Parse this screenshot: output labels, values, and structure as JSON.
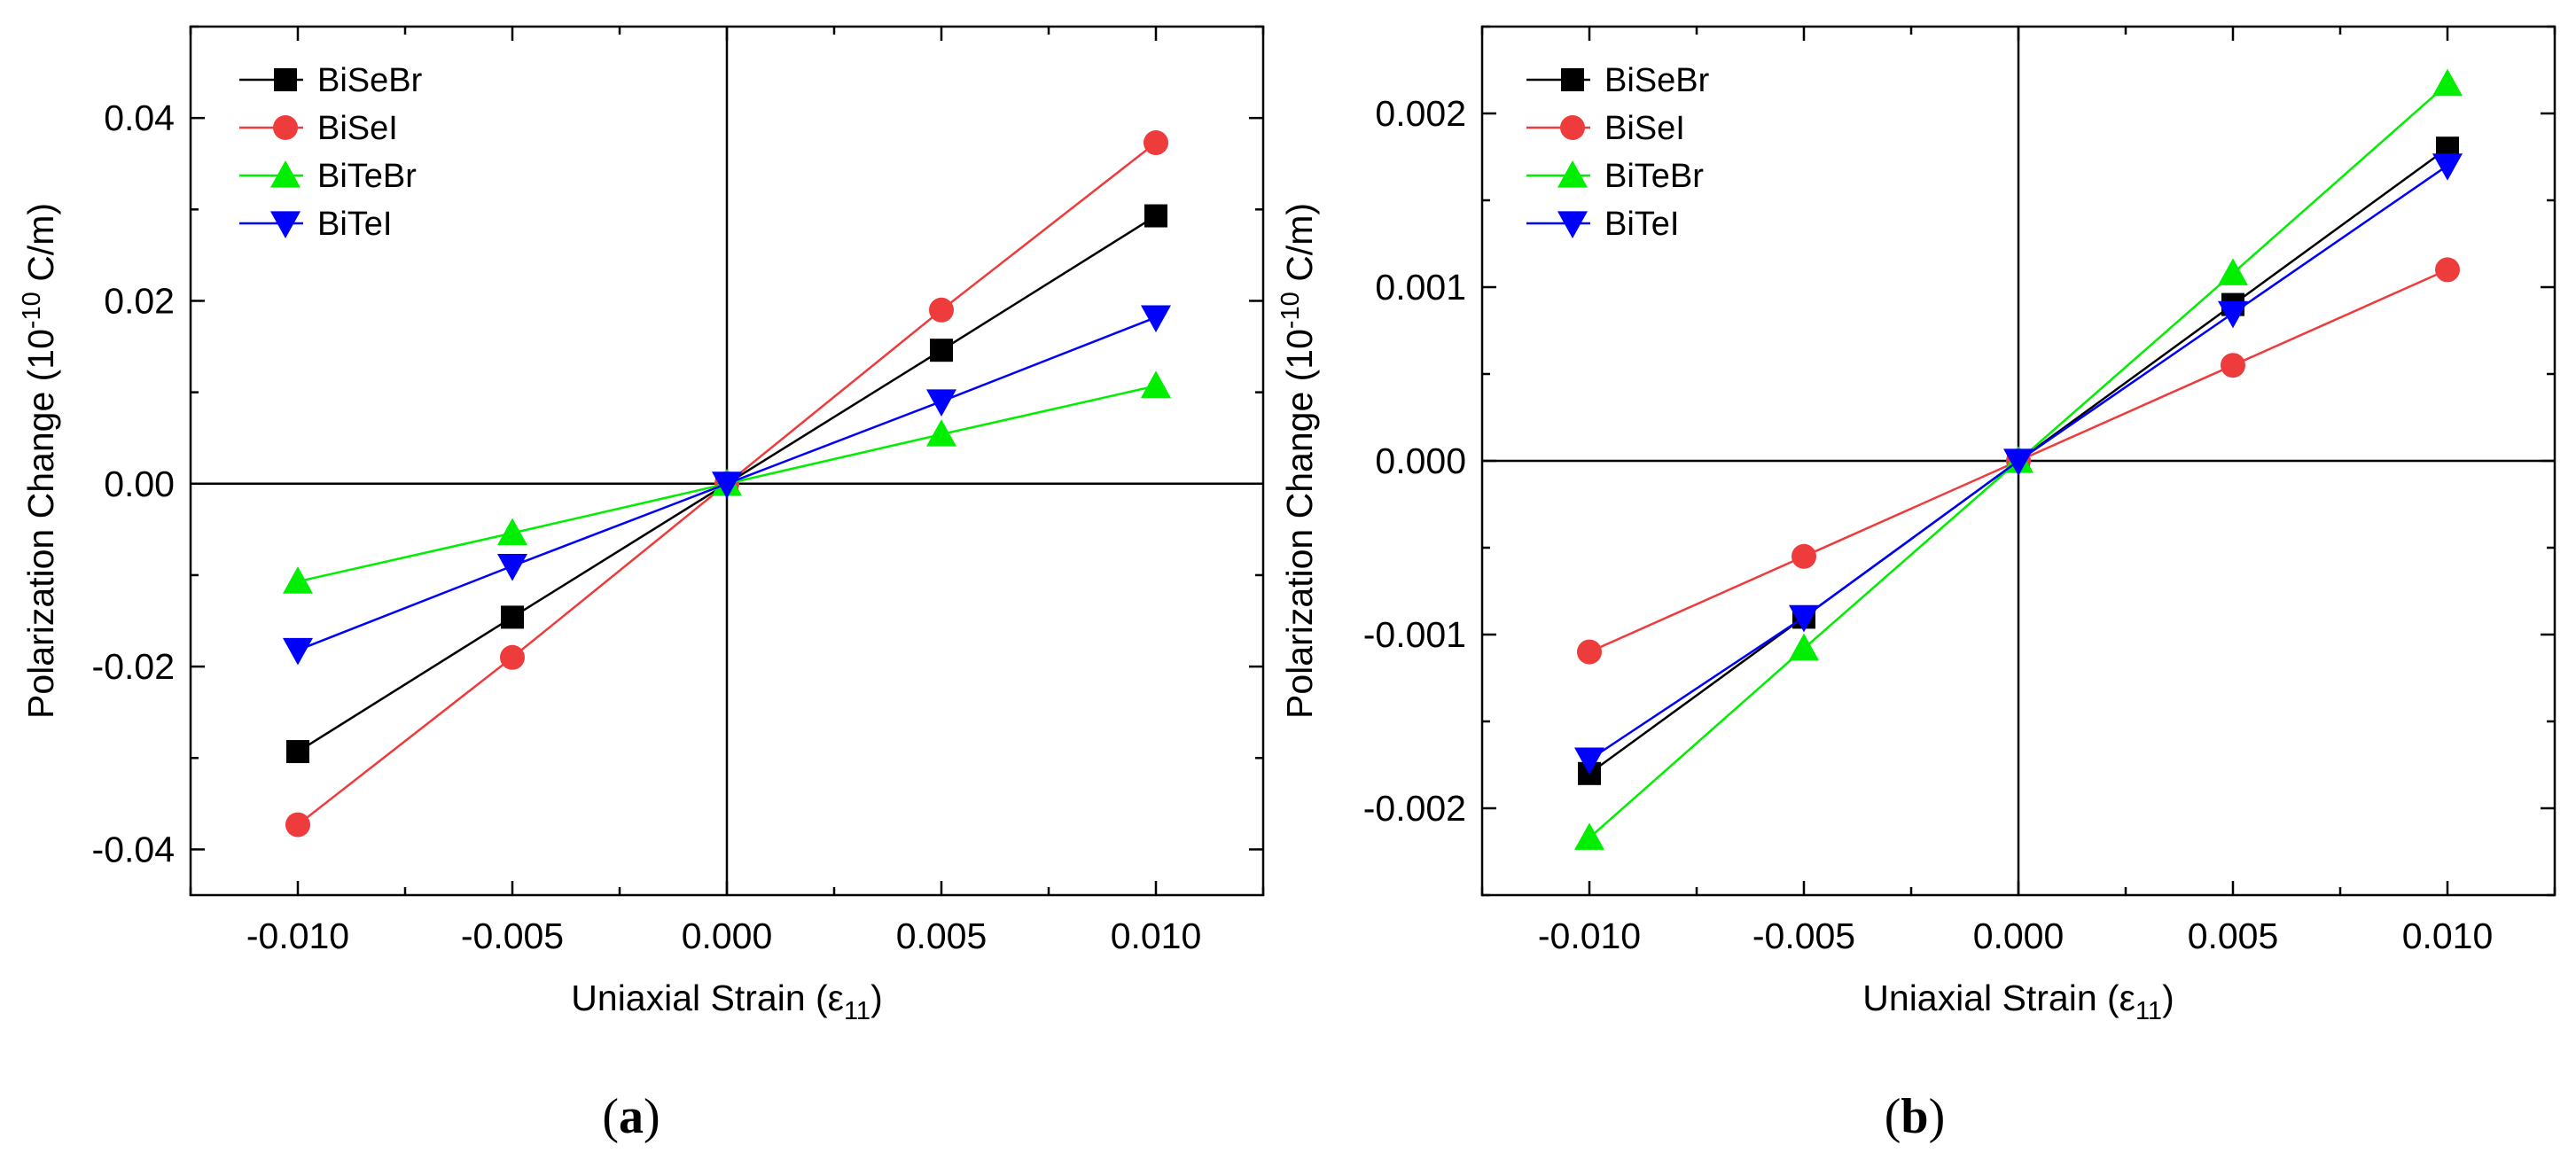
{
  "charts": [
    {
      "caption_open": "(",
      "caption_letter": "a",
      "caption_close": ")"
    },
    {
      "caption_open": "(",
      "caption_letter": "b",
      "caption_close": ")"
    }
  ],
  "chart_data": [
    {
      "type": "line",
      "title": "",
      "xlabel": "Uniaxial Strain (ε11)",
      "xlabel_main": "Uniaxial Strain (ε",
      "xlabel_sub": "11",
      "xlabel_close": ")",
      "ylabel": "Polarization Change (10-10 C/m)",
      "ylabel_main": "Polarization Change (10",
      "ylabel_sup": "-10",
      "ylabel_unit": " C/m)",
      "xlim": [
        -0.0125,
        0.0125
      ],
      "ylim": [
        -0.045,
        0.05
      ],
      "xticks": [
        -0.01,
        -0.005,
        0.0,
        0.005,
        0.01
      ],
      "xtick_labels": [
        "-0.010",
        "-0.005",
        "0.000",
        "0.005",
        "0.010"
      ],
      "yticks": [
        -0.04,
        -0.02,
        0.0,
        0.02,
        0.04
      ],
      "ytick_labels": [
        "-0.04",
        "-0.02",
        "0.00",
        "0.02",
        "0.04"
      ],
      "legend_position": "top-left",
      "x": [
        -0.01,
        -0.005,
        0.0,
        0.005,
        0.01
      ],
      "series": [
        {
          "name": "BiSeBr",
          "color": "#000000",
          "marker": "square",
          "values": [
            -0.0293,
            -0.0146,
            0.0,
            0.0146,
            0.0293
          ]
        },
        {
          "name": "BiSeI",
          "color": "#ee3b3b",
          "marker": "circle",
          "values": [
            -0.0373,
            -0.019,
            0.0,
            0.019,
            0.0373
          ]
        },
        {
          "name": "BiTeBr",
          "color": "#00ee00",
          "marker": "triangle-up",
          "values": [
            -0.0107,
            -0.0054,
            0.0,
            0.0054,
            0.0107
          ]
        },
        {
          "name": "BiTeI",
          "color": "#0000ff",
          "marker": "triangle-down",
          "values": [
            -0.0182,
            -0.009,
            0.0,
            0.009,
            0.0182
          ]
        }
      ]
    },
    {
      "type": "line",
      "title": "",
      "xlabel": "Uniaxial Strain (ε11)",
      "xlabel_main": "Uniaxial Strain (ε",
      "xlabel_sub": "11",
      "xlabel_close": ")",
      "ylabel": "Polarization Change (10-10 C/m)",
      "ylabel_main": "Polarization Change (10",
      "ylabel_sup": "-10",
      "ylabel_unit": " C/m)",
      "xlim": [
        -0.0125,
        0.0125
      ],
      "ylim": [
        -0.0025,
        0.0025
      ],
      "xticks": [
        -0.01,
        -0.005,
        0.0,
        0.005,
        0.01
      ],
      "xtick_labels": [
        "-0.010",
        "-0.005",
        "0.000",
        "0.005",
        "0.010"
      ],
      "yticks": [
        -0.002,
        -0.001,
        0.0,
        0.001,
        0.002
      ],
      "ytick_labels": [
        "-0.002",
        "-0.001",
        "0.000",
        "0.001",
        "0.002"
      ],
      "legend_position": "top-left",
      "x": [
        -0.01,
        -0.005,
        0.0,
        0.005,
        0.01
      ],
      "series": [
        {
          "name": "BiSeBr",
          "color": "#000000",
          "marker": "square",
          "values": [
            -0.0018,
            -0.0009,
            0.0,
            0.0009,
            0.0018
          ]
        },
        {
          "name": "BiSeI",
          "color": "#ee3b3b",
          "marker": "circle",
          "values": [
            -0.0011,
            -0.00055,
            0.0,
            0.00055,
            0.0011
          ]
        },
        {
          "name": "BiTeBr",
          "color": "#00ee00",
          "marker": "triangle-up",
          "values": [
            -0.00217,
            -0.00108,
            0.0,
            0.00108,
            0.00217
          ]
        },
        {
          "name": "BiTeI",
          "color": "#0000ff",
          "marker": "triangle-down",
          "values": [
            -0.00172,
            -0.0009,
            0.0,
            0.00085,
            0.0017
          ]
        }
      ]
    }
  ]
}
